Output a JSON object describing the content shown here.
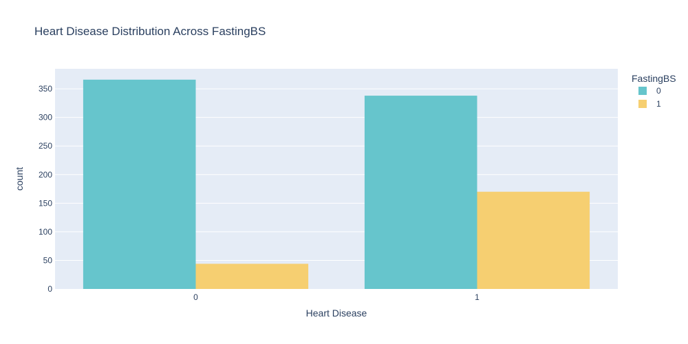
{
  "chart_data": {
    "type": "bar",
    "title": "Heart Disease Distribution Across FastingBS",
    "xlabel": "Heart Disease",
    "ylabel": "count",
    "categories": [
      "0",
      "1"
    ],
    "series": [
      {
        "name": "0",
        "values": [
          366,
          338
        ],
        "color": "#66c5cc"
      },
      {
        "name": "1",
        "values": [
          44,
          170
        ],
        "color": "#f6cf71"
      }
    ],
    "ylim": [
      0,
      385
    ],
    "yticks": [
      0,
      50,
      100,
      150,
      200,
      250,
      300,
      350
    ],
    "legend": {
      "title": "FastingBS",
      "placement": "top-right"
    },
    "grid": true,
    "plot_bg": "#e5ecf6"
  }
}
